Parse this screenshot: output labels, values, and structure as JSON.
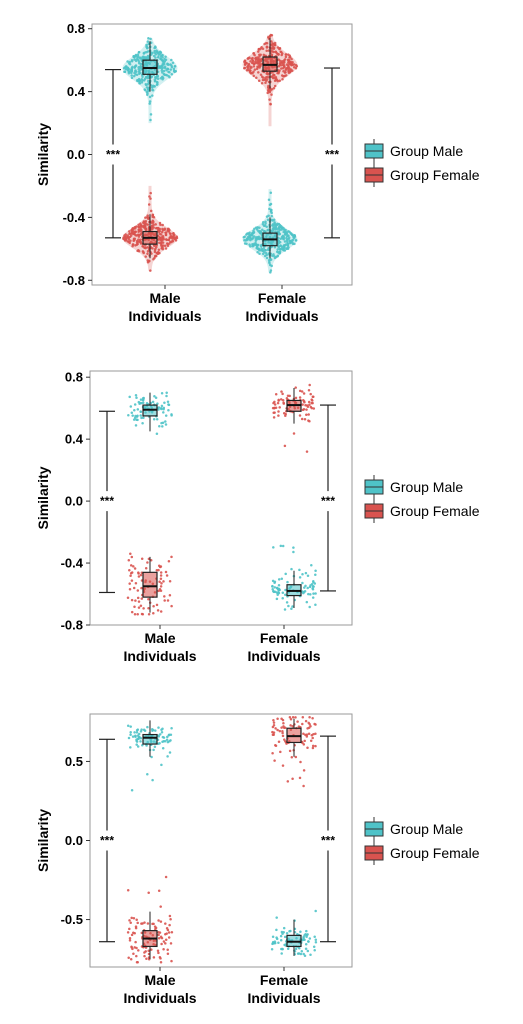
{
  "colors": {
    "male": "#4fc3c8",
    "female": "#d9534f",
    "panel_border": "#9a9a9a"
  },
  "legend": [
    {
      "label": "Group Male",
      "color_key": "male"
    },
    {
      "label": "Group Female",
      "color_key": "female"
    }
  ],
  "chart_data": [
    {
      "type": "violin-box-strip",
      "ylabel": "Similarity",
      "categories": [
        "Male Individuals",
        "Female Individuals"
      ],
      "category_lines": [
        [
          "Male",
          "Individuals"
        ],
        [
          "Female",
          "Individuals"
        ]
      ],
      "yticks": [
        -0.8,
        -0.4,
        0.0,
        0.4,
        0.8
      ],
      "ytick_labels": [
        "-0.8",
        "-0.4",
        "0.0",
        "0.4",
        "0.8"
      ],
      "ylim": [
        -0.83,
        0.83
      ],
      "series": [
        {
          "name": "Group Male",
          "color_key": "male",
          "groups": [
            {
              "category": "Male Individuals",
              "q1": 0.51,
              "median": 0.55,
              "q3": 0.6,
              "min": 0.4,
              "max": 0.72,
              "lo": 0.2,
              "hi": 0.74,
              "n": 340
            },
            {
              "category": "Female Individuals",
              "q1": -0.58,
              "median": -0.54,
              "q3": -0.5,
              "min": -0.66,
              "max": -0.4,
              "lo": -0.75,
              "hi": -0.22,
              "n": 340
            }
          ]
        },
        {
          "name": "Group Female",
          "color_key": "female",
          "groups": [
            {
              "category": "Male Individuals",
              "q1": -0.57,
              "median": -0.53,
              "q3": -0.49,
              "min": -0.66,
              "max": -0.38,
              "lo": -0.74,
              "hi": -0.2,
              "n": 340
            },
            {
              "category": "Female Individuals",
              "q1": 0.53,
              "median": 0.57,
              "q3": 0.62,
              "min": 0.42,
              "max": 0.74,
              "lo": 0.18,
              "hi": 0.76,
              "n": 340
            }
          ]
        }
      ],
      "violin": true,
      "significance": [
        {
          "category": "Male Individuals",
          "label": "***",
          "top": 0.54,
          "bottom": -0.53
        },
        {
          "category": "Female Individuals",
          "label": "***",
          "top": 0.55,
          "bottom": -0.53
        }
      ]
    },
    {
      "type": "box-strip",
      "ylabel": "Similarity",
      "categories": [
        "Male Individuals",
        "Female Individuals"
      ],
      "category_lines": [
        [
          "Male",
          "Individuals"
        ],
        [
          "Female",
          "Individuals"
        ]
      ],
      "yticks": [
        -0.8,
        -0.4,
        0.0,
        0.4,
        0.8
      ],
      "ytick_labels": [
        "-0.8",
        "-0.4",
        "0.0",
        "0.4",
        "0.8"
      ],
      "ylim": [
        -0.8,
        0.84
      ],
      "series": [
        {
          "name": "Group Male",
          "color_key": "male",
          "groups": [
            {
              "category": "Male Individuals",
              "q1": 0.55,
              "median": 0.59,
              "q3": 0.62,
              "min": 0.45,
              "max": 0.7,
              "lo": 0.4,
              "hi": 0.72,
              "n": 90
            },
            {
              "category": "Female Individuals",
              "q1": -0.61,
              "median": -0.58,
              "q3": -0.54,
              "min": -0.69,
              "max": -0.45,
              "lo": -0.7,
              "hi": -0.26,
              "n": 90
            }
          ]
        },
        {
          "name": "Group Female",
          "color_key": "female",
          "groups": [
            {
              "category": "Male Individuals",
              "q1": -0.62,
              "median": -0.55,
              "q3": -0.46,
              "min": -0.72,
              "max": -0.36,
              "lo": -0.73,
              "hi": -0.34,
              "n": 90
            },
            {
              "category": "Female Individuals",
              "q1": 0.58,
              "median": 0.62,
              "q3": 0.65,
              "min": 0.5,
              "max": 0.73,
              "lo": 0.31,
              "hi": 0.76,
              "n": 90
            }
          ]
        }
      ],
      "violin": false,
      "significance": [
        {
          "category": "Male Individuals",
          "label": "***",
          "top": 0.58,
          "bottom": -0.59
        },
        {
          "category": "Female Individuals",
          "label": "***",
          "top": 0.62,
          "bottom": -0.58
        }
      ]
    },
    {
      "type": "box-strip",
      "ylabel": "Similarity",
      "categories": [
        "Male Individuals",
        "Female Individuals"
      ],
      "category_lines": [
        [
          "Male",
          "Individuals"
        ],
        [
          "Female",
          "Individuals"
        ]
      ],
      "yticks": [
        -0.5,
        0.0,
        0.5
      ],
      "ytick_labels": [
        "-0.5",
        "0.0",
        "0.5"
      ],
      "ylim": [
        -0.8,
        0.8
      ],
      "series": [
        {
          "name": "Group Male",
          "color_key": "male",
          "groups": [
            {
              "category": "Male Individuals",
              "q1": 0.61,
              "median": 0.65,
              "q3": 0.67,
              "min": 0.53,
              "max": 0.76,
              "lo": 0.31,
              "hi": 0.78,
              "n": 90
            },
            {
              "category": "Female Individuals",
              "q1": -0.67,
              "median": -0.64,
              "q3": -0.6,
              "min": -0.73,
              "max": -0.5,
              "lo": -0.74,
              "hi": -0.4,
              "n": 90
            }
          ]
        },
        {
          "name": "Group Female",
          "color_key": "female",
          "groups": [
            {
              "category": "Male Individuals",
              "q1": -0.67,
              "median": -0.62,
              "q3": -0.57,
              "min": -0.75,
              "max": -0.45,
              "lo": -0.77,
              "hi": -0.17,
              "n": 110
            },
            {
              "category": "Female Individuals",
              "q1": 0.62,
              "median": 0.66,
              "q3": 0.71,
              "min": 0.53,
              "max": 0.77,
              "lo": 0.31,
              "hi": 0.78,
              "n": 90
            }
          ]
        }
      ],
      "violin": false,
      "significance": [
        {
          "category": "Male Individuals",
          "label": "***",
          "top": 0.64,
          "bottom": -0.64
        },
        {
          "category": "Female Individuals",
          "label": "***",
          "top": 0.66,
          "bottom": -0.64
        }
      ]
    }
  ]
}
